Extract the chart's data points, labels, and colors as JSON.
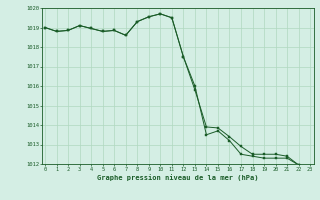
{
  "title": "Graphe pression niveau de la mer (hPa)",
  "background_color": "#d4eee4",
  "grid_color": "#b0d8c0",
  "line_color": "#1a5c28",
  "x_min": 0,
  "x_max": 23,
  "y_min": 1012,
  "y_max": 1020,
  "series1": {
    "x": [
      0,
      1,
      2,
      3,
      4,
      5,
      6,
      7,
      8,
      9,
      10,
      11,
      12,
      13,
      14,
      15,
      16,
      17,
      18,
      19,
      20,
      21,
      22,
      23
    ],
    "y": [
      1019.0,
      1018.8,
      1018.85,
      1019.1,
      1018.95,
      1018.8,
      1018.85,
      1018.6,
      1019.3,
      1019.55,
      1019.7,
      1019.5,
      1017.5,
      1015.8,
      1013.9,
      1013.85,
      1013.4,
      1012.9,
      1012.5,
      1012.5,
      1012.5,
      1012.4,
      1011.95,
      1011.8
    ]
  },
  "series2": {
    "x": [
      0,
      1,
      2,
      3,
      4,
      5,
      6,
      7,
      8,
      9,
      10,
      11,
      12,
      13,
      14,
      15,
      16,
      17,
      18,
      19,
      20,
      21,
      22,
      23
    ],
    "y": [
      1019.0,
      1018.8,
      1018.85,
      1019.1,
      1018.95,
      1018.8,
      1018.85,
      1018.6,
      1019.3,
      1019.55,
      1019.7,
      1019.5,
      1017.5,
      1016.0,
      1013.5,
      1013.7,
      1013.2,
      1012.5,
      1012.4,
      1012.3,
      1012.3,
      1012.3,
      1011.95,
      1011.8
    ]
  }
}
